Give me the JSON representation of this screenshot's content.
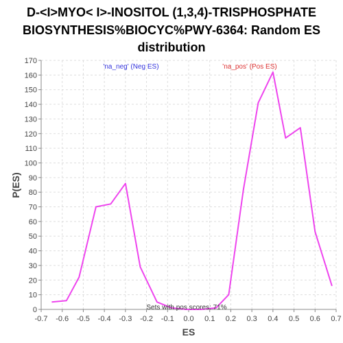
{
  "chart_data": {
    "type": "line",
    "title_lines": [
      "D-<I>MYO< I>-INOSITOL (1,3,4)-TRISPHOSPHATE",
      "BIOSYNTHESIS%BIOCYC%PWY-6364: Random ES",
      "distribution"
    ],
    "xlabel": "ES",
    "ylabel": "P(ES)",
    "xlim": [
      -0.7,
      0.7
    ],
    "ylim": [
      0,
      170
    ],
    "x_ticks": [
      "-0.7",
      "-0.6",
      "-0.5",
      "-0.4",
      "-0.3",
      "-0.2",
      "-0.1",
      "0.0",
      "0.1",
      "0.2",
      "0.3",
      "0.4",
      "0.5",
      "0.6",
      "0.7"
    ],
    "y_ticks": [
      "0",
      "10",
      "20",
      "30",
      "40",
      "50",
      "60",
      "70",
      "80",
      "90",
      "100",
      "110",
      "120",
      "130",
      "140",
      "150",
      "160",
      "170"
    ],
    "grid": true,
    "series": [
      {
        "color": "#ee44ee",
        "x": [
          -0.65,
          -0.58,
          -0.52,
          -0.44,
          -0.37,
          -0.3,
          -0.23,
          -0.15,
          -0.08,
          -0.01,
          0.06,
          0.13,
          0.19,
          0.26,
          0.33,
          0.4,
          0.46,
          0.53,
          0.6,
          0.68
        ],
        "y": [
          5,
          6,
          22,
          70,
          72,
          86,
          29,
          5,
          1,
          0,
          0,
          1,
          10,
          82,
          141,
          162,
          117,
          124,
          53,
          16
        ]
      }
    ],
    "annotations": {
      "neg_label": "'na_neg' (Neg ES)",
      "pos_label": "'na_pos' (Pos ES)",
      "bottom_note": "Sets with pos scores: 71%",
      "neg_color": "#3333dd",
      "pos_color": "#dd3333"
    }
  }
}
